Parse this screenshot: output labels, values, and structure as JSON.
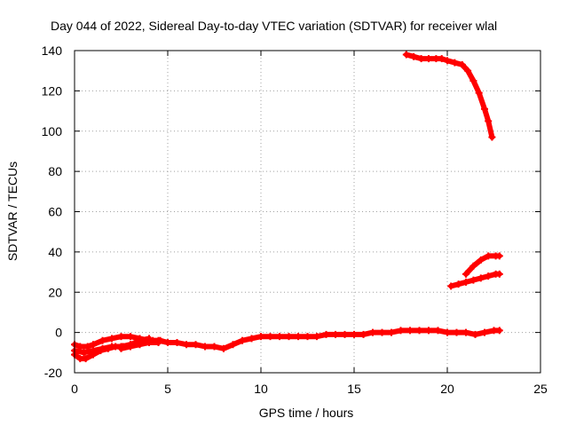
{
  "chart_data": {
    "type": "line",
    "title": "Day 044 of 2022, Sidereal Day-to-day VTEC variation (SDTVAR) for receiver wlal",
    "xlabel": "GPS time / hours",
    "ylabel": "SDTVAR / TECUs",
    "xlim": [
      0,
      25
    ],
    "ylim": [
      -20,
      140
    ],
    "xticks": [
      0,
      5,
      10,
      15,
      20,
      25
    ],
    "yticks": [
      -20,
      0,
      20,
      40,
      60,
      80,
      100,
      120,
      140
    ],
    "xtick_labels": [
      "0",
      "5",
      "10",
      "15",
      "20",
      "25"
    ],
    "ytick_labels": [
      "-20",
      "0",
      "20",
      "40",
      "60",
      "80",
      "100",
      "120",
      "140"
    ],
    "grid": true,
    "marker": "plus",
    "color": "#ff0000",
    "series": [
      {
        "name": "main-low-upper",
        "x": [
          0.0,
          0.3,
          0.7,
          1.0,
          1.5,
          2.0,
          2.5,
          3.0,
          3.5,
          4.0,
          4.5,
          5.0,
          5.5,
          6.0,
          6.5,
          7.0,
          7.5,
          8.0,
          8.5,
          9.0,
          9.5,
          10.0,
          10.5,
          11.0,
          11.5,
          12.0,
          12.5,
          13.0,
          13.5,
          14.0,
          14.5,
          15.0,
          15.5,
          16.0,
          16.5,
          17.0,
          17.5,
          18.0,
          18.5,
          19.0,
          19.5,
          20.0,
          20.5,
          21.0,
          21.5,
          22.0,
          22.5,
          22.8
        ],
        "y": [
          -6,
          -7,
          -7,
          -6,
          -4,
          -3,
          -2,
          -2,
          -3,
          -4,
          -4,
          -5,
          -5,
          -6,
          -6,
          -7,
          -7,
          -8,
          -6,
          -4,
          -3,
          -2,
          -2,
          -2,
          -2,
          -2,
          -2,
          -2,
          -1,
          -1,
          -1,
          -1,
          -1,
          0,
          0,
          0,
          1,
          1,
          1,
          1,
          1,
          0,
          0,
          0,
          -1,
          0,
          1,
          1
        ]
      },
      {
        "name": "main-low-lower",
        "x": [
          0.0,
          0.3,
          0.6,
          1.0,
          1.4,
          1.8,
          2.2,
          2.6,
          3.0,
          3.4,
          3.8,
          4.2,
          4.6,
          5.0
        ],
        "y": [
          -11,
          -13,
          -13,
          -11,
          -9,
          -8,
          -7,
          -7,
          -6,
          -5,
          -4,
          -4,
          -4,
          -5
        ]
      },
      {
        "name": "main-low-middle",
        "x": [
          0.0,
          0.5,
          1.0,
          1.5,
          2.0,
          2.5,
          3.0,
          3.5,
          4.0
        ],
        "y": [
          -9,
          -10,
          -9,
          -8,
          -7,
          -7,
          -6,
          -4,
          -3
        ]
      },
      {
        "name": "bump-near-3h",
        "x": [
          2.5,
          3.0,
          3.5,
          4.0,
          4.5
        ],
        "y": [
          -8,
          -7,
          -6,
          -5,
          -5
        ]
      },
      {
        "name": "high-arc",
        "x": [
          17.8,
          18.2,
          18.6,
          19.0,
          19.4,
          19.7,
          20.0,
          20.4,
          20.8,
          21.1,
          21.4,
          21.7,
          22.0,
          22.2,
          22.4
        ],
        "y": [
          138,
          137,
          136,
          136,
          136,
          136,
          135,
          134,
          133,
          130,
          125,
          119,
          111,
          105,
          97
        ]
      },
      {
        "name": "mid-segment-upper",
        "x": [
          21.0,
          21.4,
          21.8,
          22.2,
          22.6,
          22.8
        ],
        "y": [
          29,
          33,
          36,
          38,
          38,
          38
        ]
      },
      {
        "name": "mid-segment-lower",
        "x": [
          20.2,
          20.6,
          21.0,
          21.4,
          21.8,
          22.2,
          22.6,
          22.8
        ],
        "y": [
          23,
          24,
          25,
          26,
          27,
          28,
          29,
          29
        ]
      }
    ]
  }
}
